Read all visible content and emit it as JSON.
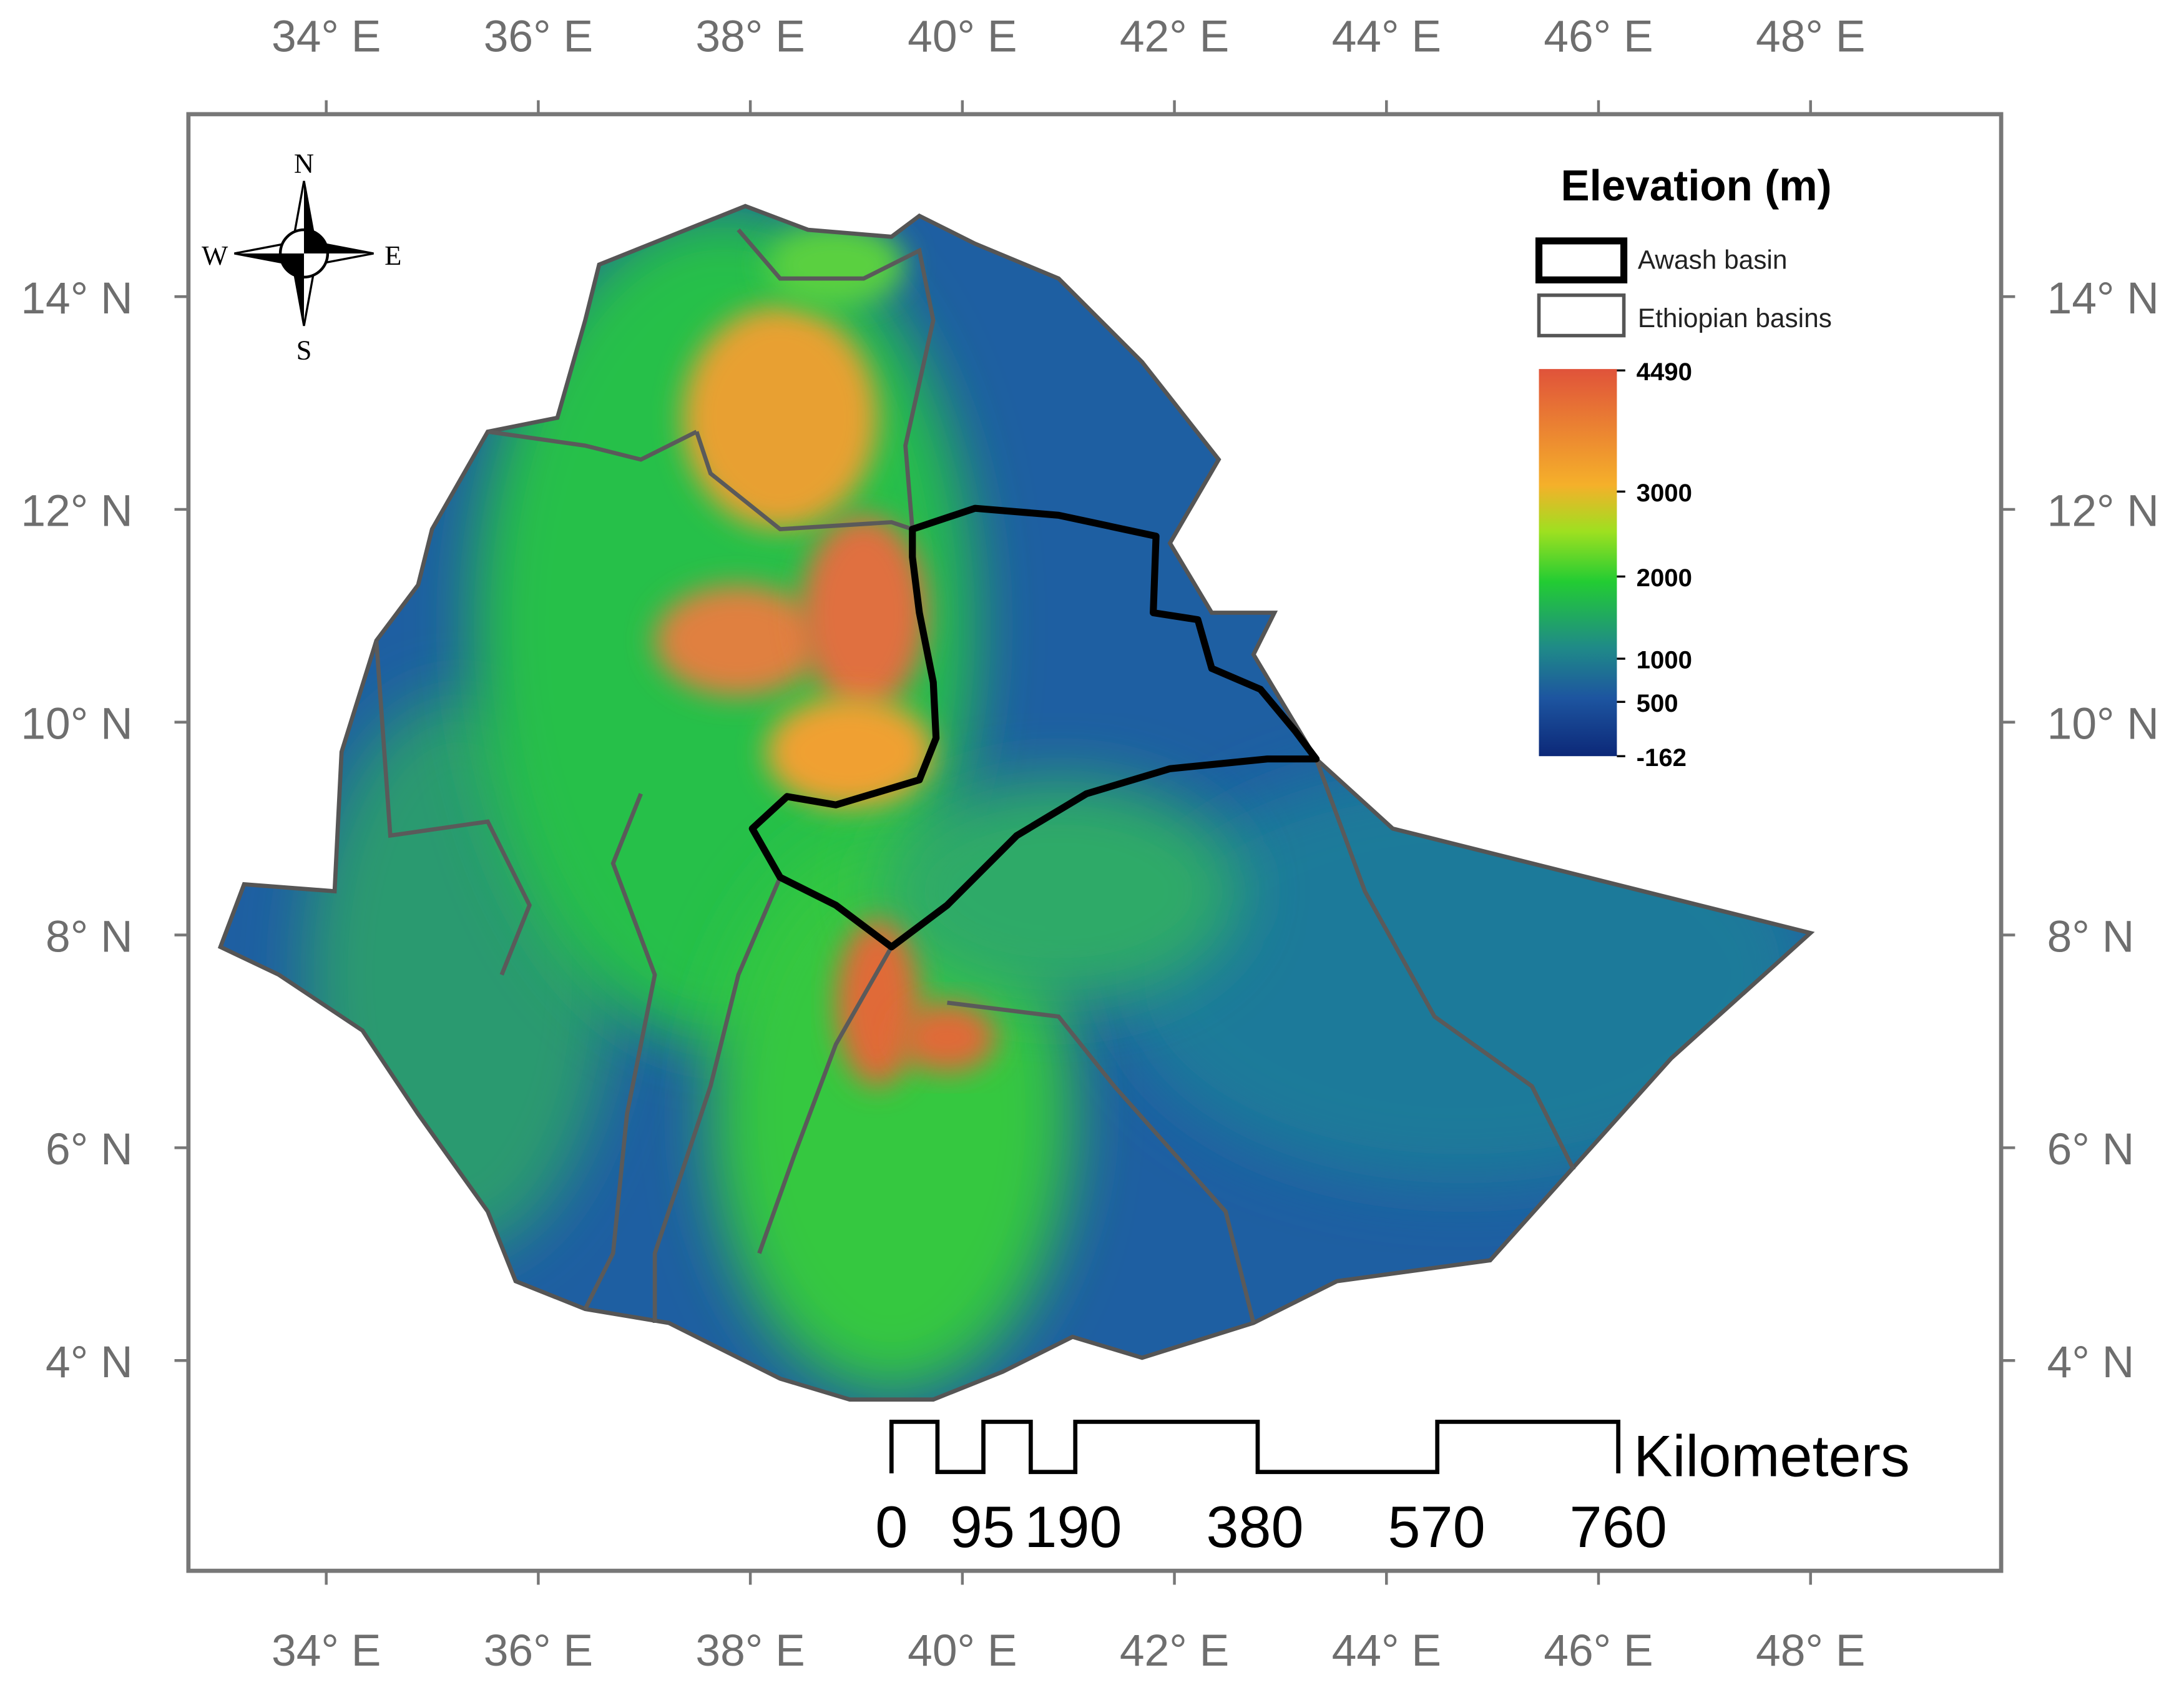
{
  "axes": {
    "x_labels": [
      "34° E",
      "36° E",
      "38° E",
      "40° E",
      "42° E",
      "44° E",
      "46° E",
      "48° E"
    ],
    "y_labels": [
      "14° N",
      "12° N",
      "10° N",
      "8° N",
      "6° N",
      "4° N"
    ]
  },
  "compass": {
    "north": "N",
    "south": "S",
    "east": "E",
    "west": "W"
  },
  "legend": {
    "title": "Elevation (m)",
    "items": [
      "Awash basin",
      "Ethiopian basins"
    ],
    "colorbar_labels": [
      "4490",
      "3000",
      "2000",
      "1000",
      "500",
      "-162"
    ]
  },
  "scale_bar": {
    "unit": "Kilometers",
    "ticks": [
      0,
      95,
      190,
      380,
      570,
      760
    ]
  }
}
